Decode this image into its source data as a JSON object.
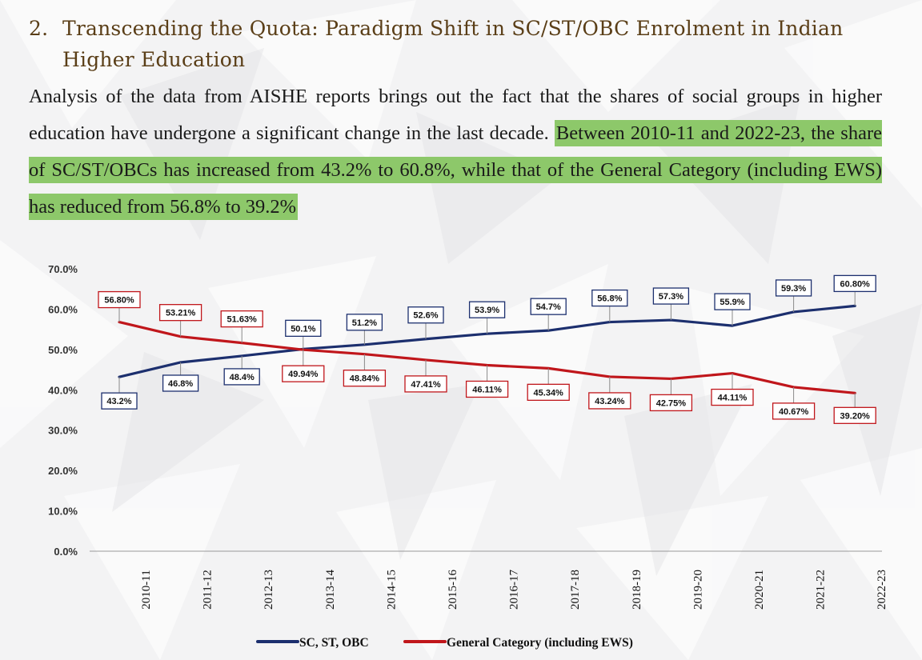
{
  "heading": {
    "number": "2.",
    "line1": "Transcending the Quota: Paradigm Shift in SC/ST/OBC Enrolment in Indian",
    "line2": "Higher Education"
  },
  "paragraph": {
    "text": "Analysis of the data from AISHE reports brings out the fact that the shares of social groups in higher education have undergone a significant change in the last decade.",
    "highlighted": "Between 2010-11 and 2022-23, the share of SC/ST/OBCs has increased from 43.2% to 60.8%, while that of the General Category (including EWS) has reduced from 56.8% to 39.2%"
  },
  "colors": {
    "sc_st_obc": "#1c2f6e",
    "general": "#c0161b",
    "highlight": "#8dc86a",
    "heading": "#5a3e17"
  },
  "chart_data": {
    "type": "line",
    "title": "",
    "xlabel": "",
    "ylabel": "",
    "ylim": [
      0,
      70
    ],
    "y_ticks": [
      "0.0%",
      "10.0%",
      "20.0%",
      "30.0%",
      "40.0%",
      "50.0%",
      "60.0%",
      "70.0%"
    ],
    "categories": [
      "2010-11",
      "2011-12",
      "2012-13",
      "2013-14",
      "2014-15",
      "2015-16",
      "2016-17",
      "2017-18",
      "2018-19",
      "2019-20",
      "2020-21",
      "2021-22",
      "2022-23"
    ],
    "series": [
      {
        "name": "SC, ST, OBC",
        "values": [
          43.2,
          46.8,
          48.4,
          50.1,
          51.2,
          52.6,
          53.9,
          54.7,
          56.8,
          57.3,
          55.9,
          59.3,
          60.8
        ],
        "labels": [
          "43.2%",
          "46.8%",
          "48.4%",
          "50.1%",
          "51.2%",
          "52.6%",
          "53.9%",
          "54.7%",
          "56.8%",
          "57.3%",
          "55.9%",
          "59.3%",
          "60.80%"
        ]
      },
      {
        "name": "General Category (including EWS)",
        "values": [
          56.8,
          53.21,
          51.63,
          49.94,
          48.84,
          47.41,
          46.11,
          45.34,
          43.24,
          42.75,
          44.11,
          40.67,
          39.2
        ],
        "labels": [
          "56.80%",
          "53.21%",
          "51.63%",
          "49.94%",
          "48.84%",
          "47.41%",
          "46.11%",
          "45.34%",
          "43.24%",
          "42.75%",
          "44.11%",
          "40.67%",
          "39.20%"
        ]
      }
    ],
    "legend": "bottom"
  }
}
